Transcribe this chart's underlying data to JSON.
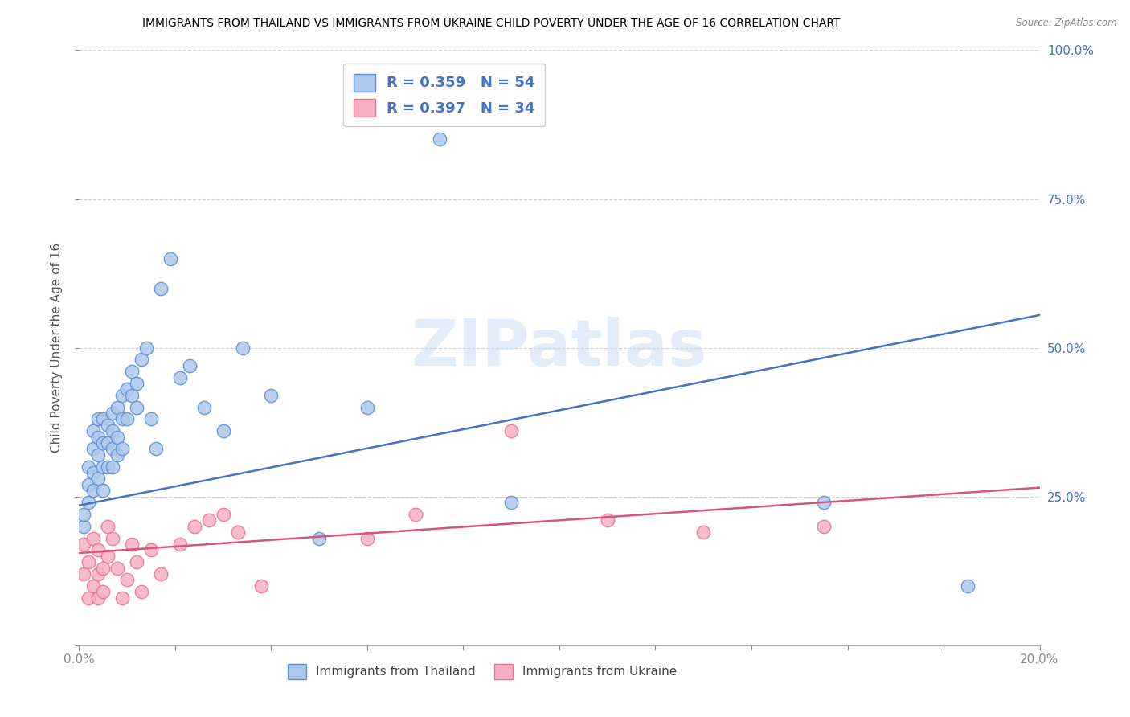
{
  "title": "IMMIGRANTS FROM THAILAND VS IMMIGRANTS FROM UKRAINE CHILD POVERTY UNDER THE AGE OF 16 CORRELATION CHART",
  "source": "Source: ZipAtlas.com",
  "ylabel": "Child Poverty Under the Age of 16",
  "xlim": [
    0.0,
    0.2
  ],
  "ylim": [
    0.0,
    1.0
  ],
  "xticks": [
    0.0,
    0.02,
    0.04,
    0.06,
    0.08,
    0.1,
    0.12,
    0.14,
    0.16,
    0.18,
    0.2
  ],
  "yticks": [
    0.0,
    0.25,
    0.5,
    0.75,
    1.0
  ],
  "right_ytick_labels": [
    "",
    "25.0%",
    "50.0%",
    "75.0%",
    "100.0%"
  ],
  "thailand_color": "#adc8eb",
  "ukraine_color": "#f5afc4",
  "thailand_edge_color": "#5b8ed6",
  "ukraine_edge_color": "#e8728e",
  "thailand_line_color": "#4472c4",
  "ukraine_line_color": "#d9547a",
  "thailand_R": 0.359,
  "thailand_N": 54,
  "ukraine_R": 0.397,
  "ukraine_N": 34,
  "thailand_line_x": [
    0.0,
    0.2
  ],
  "thailand_line_y": [
    0.235,
    0.555
  ],
  "ukraine_line_x": [
    0.0,
    0.2
  ],
  "ukraine_line_y": [
    0.155,
    0.265
  ],
  "watermark": "ZIPatlas",
  "legend_labels": [
    "Immigrants from Thailand",
    "Immigrants from Ukraine"
  ],
  "thailand_x": [
    0.001,
    0.001,
    0.002,
    0.002,
    0.002,
    0.003,
    0.003,
    0.003,
    0.003,
    0.004,
    0.004,
    0.004,
    0.004,
    0.005,
    0.005,
    0.005,
    0.005,
    0.006,
    0.006,
    0.006,
    0.007,
    0.007,
    0.007,
    0.007,
    0.008,
    0.008,
    0.008,
    0.009,
    0.009,
    0.009,
    0.01,
    0.01,
    0.011,
    0.011,
    0.012,
    0.012,
    0.013,
    0.014,
    0.015,
    0.016,
    0.017,
    0.019,
    0.021,
    0.023,
    0.026,
    0.03,
    0.034,
    0.04,
    0.05,
    0.06,
    0.075,
    0.09,
    0.155,
    0.185
  ],
  "thailand_y": [
    0.2,
    0.22,
    0.27,
    0.3,
    0.24,
    0.26,
    0.29,
    0.33,
    0.36,
    0.28,
    0.32,
    0.35,
    0.38,
    0.26,
    0.3,
    0.34,
    0.38,
    0.3,
    0.34,
    0.37,
    0.3,
    0.33,
    0.36,
    0.39,
    0.32,
    0.35,
    0.4,
    0.33,
    0.38,
    0.42,
    0.38,
    0.43,
    0.42,
    0.46,
    0.4,
    0.44,
    0.48,
    0.5,
    0.38,
    0.33,
    0.6,
    0.65,
    0.45,
    0.47,
    0.4,
    0.36,
    0.5,
    0.42,
    0.18,
    0.4,
    0.85,
    0.24,
    0.24,
    0.1
  ],
  "ukraine_x": [
    0.001,
    0.001,
    0.002,
    0.002,
    0.003,
    0.003,
    0.004,
    0.004,
    0.004,
    0.005,
    0.005,
    0.006,
    0.006,
    0.007,
    0.008,
    0.009,
    0.01,
    0.011,
    0.012,
    0.013,
    0.015,
    0.017,
    0.021,
    0.024,
    0.027,
    0.03,
    0.033,
    0.038,
    0.06,
    0.07,
    0.09,
    0.11,
    0.13,
    0.155
  ],
  "ukraine_y": [
    0.17,
    0.12,
    0.08,
    0.14,
    0.18,
    0.1,
    0.12,
    0.16,
    0.08,
    0.13,
    0.09,
    0.15,
    0.2,
    0.18,
    0.13,
    0.08,
    0.11,
    0.17,
    0.14,
    0.09,
    0.16,
    0.12,
    0.17,
    0.2,
    0.21,
    0.22,
    0.19,
    0.1,
    0.18,
    0.22,
    0.36,
    0.21,
    0.19,
    0.2
  ]
}
